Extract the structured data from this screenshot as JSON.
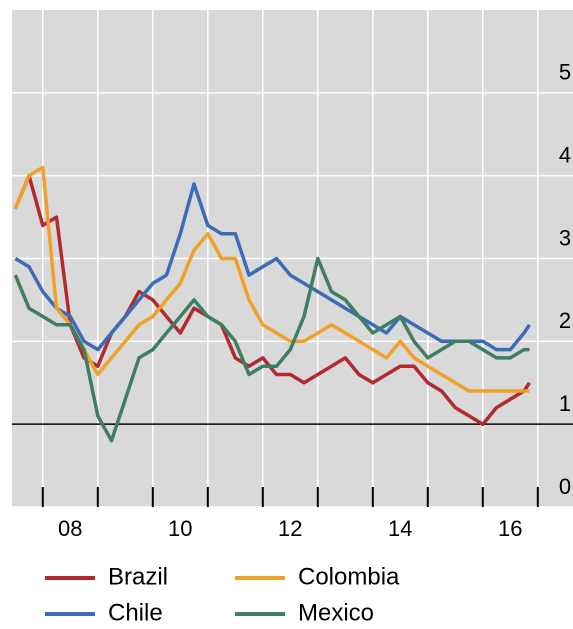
{
  "chart_data": {
    "type": "line",
    "x": [
      2007.5,
      2007.75,
      2008,
      2008.25,
      2008.5,
      2008.75,
      2009,
      2009.25,
      2009.5,
      2009.75,
      2010,
      2010.25,
      2010.5,
      2010.75,
      2011,
      2011.25,
      2011.5,
      2011.75,
      2012,
      2012.25,
      2012.5,
      2012.75,
      2013,
      2013.25,
      2013.5,
      2013.75,
      2014,
      2014.25,
      2014.5,
      2014.75,
      2015,
      2015.25,
      2015.5,
      2015.75,
      2016,
      2016.25,
      2016.5,
      2016.75,
      2016.85
    ],
    "series": [
      {
        "name": "Brazil",
        "color": "#b22a2e",
        "values": [
          3.6,
          4.0,
          3.4,
          3.5,
          2.2,
          1.8,
          1.7,
          2.1,
          2.3,
          2.6,
          2.5,
          2.3,
          2.1,
          2.4,
          2.3,
          2.2,
          1.8,
          1.7,
          1.8,
          1.6,
          1.6,
          1.5,
          1.6,
          1.7,
          1.8,
          1.6,
          1.5,
          1.6,
          1.7,
          1.7,
          1.5,
          1.4,
          1.2,
          1.1,
          1.0,
          1.2,
          1.3,
          1.4,
          1.5
        ]
      },
      {
        "name": "Chile",
        "color": "#3a6db5",
        "values": [
          3.0,
          2.9,
          2.6,
          2.4,
          2.3,
          2.0,
          1.9,
          2.1,
          2.3,
          2.5,
          2.7,
          2.8,
          3.3,
          3.9,
          3.4,
          3.3,
          3.3,
          2.8,
          2.9,
          3.0,
          2.8,
          2.7,
          2.6,
          2.5,
          2.4,
          2.3,
          2.2,
          2.1,
          2.3,
          2.2,
          2.1,
          2.0,
          2.0,
          2.0,
          2.0,
          1.9,
          1.9,
          2.1,
          2.2
        ]
      },
      {
        "name": "Colombia",
        "color": "#f0a12a",
        "values": [
          3.6,
          4.0,
          4.1,
          2.4,
          2.2,
          1.9,
          1.6,
          1.8,
          2.0,
          2.2,
          2.3,
          2.5,
          2.7,
          3.1,
          3.3,
          3.0,
          3.0,
          2.5,
          2.2,
          2.1,
          2.0,
          2.0,
          2.1,
          2.2,
          2.1,
          2.0,
          1.9,
          1.8,
          2.0,
          1.8,
          1.7,
          1.6,
          1.5,
          1.4,
          1.4,
          1.4,
          1.4,
          1.4,
          1.4
        ]
      },
      {
        "name": "Mexico",
        "color": "#3e7f63",
        "values": [
          2.8,
          2.4,
          2.3,
          2.2,
          2.2,
          1.9,
          1.1,
          0.8,
          1.3,
          1.8,
          1.9,
          2.1,
          2.3,
          2.5,
          2.3,
          2.2,
          2.0,
          1.6,
          1.7,
          1.7,
          1.9,
          2.3,
          3.0,
          2.6,
          2.5,
          2.3,
          2.1,
          2.2,
          2.3,
          2.0,
          1.8,
          1.9,
          2.0,
          2.0,
          1.9,
          1.8,
          1.8,
          1.9,
          1.9
        ]
      }
    ],
    "xlim": [
      2007.44,
      2017.64
    ],
    "xticks": [
      {
        "value": 2008.5,
        "label": "08"
      },
      {
        "value": 2010.5,
        "label": "10"
      },
      {
        "value": 2012.5,
        "label": "12"
      },
      {
        "value": 2014.5,
        "label": "14"
      },
      {
        "value": 2016.5,
        "label": "16"
      }
    ],
    "xtick_marks": [
      2008,
      2009,
      2010,
      2011,
      2012,
      2013,
      2014,
      2015,
      2016,
      2017
    ],
    "ylim": [
      0,
      6
    ],
    "yticks": [
      0,
      1,
      2,
      3,
      4,
      5
    ],
    "reference_line": 1,
    "grid": true
  }
}
